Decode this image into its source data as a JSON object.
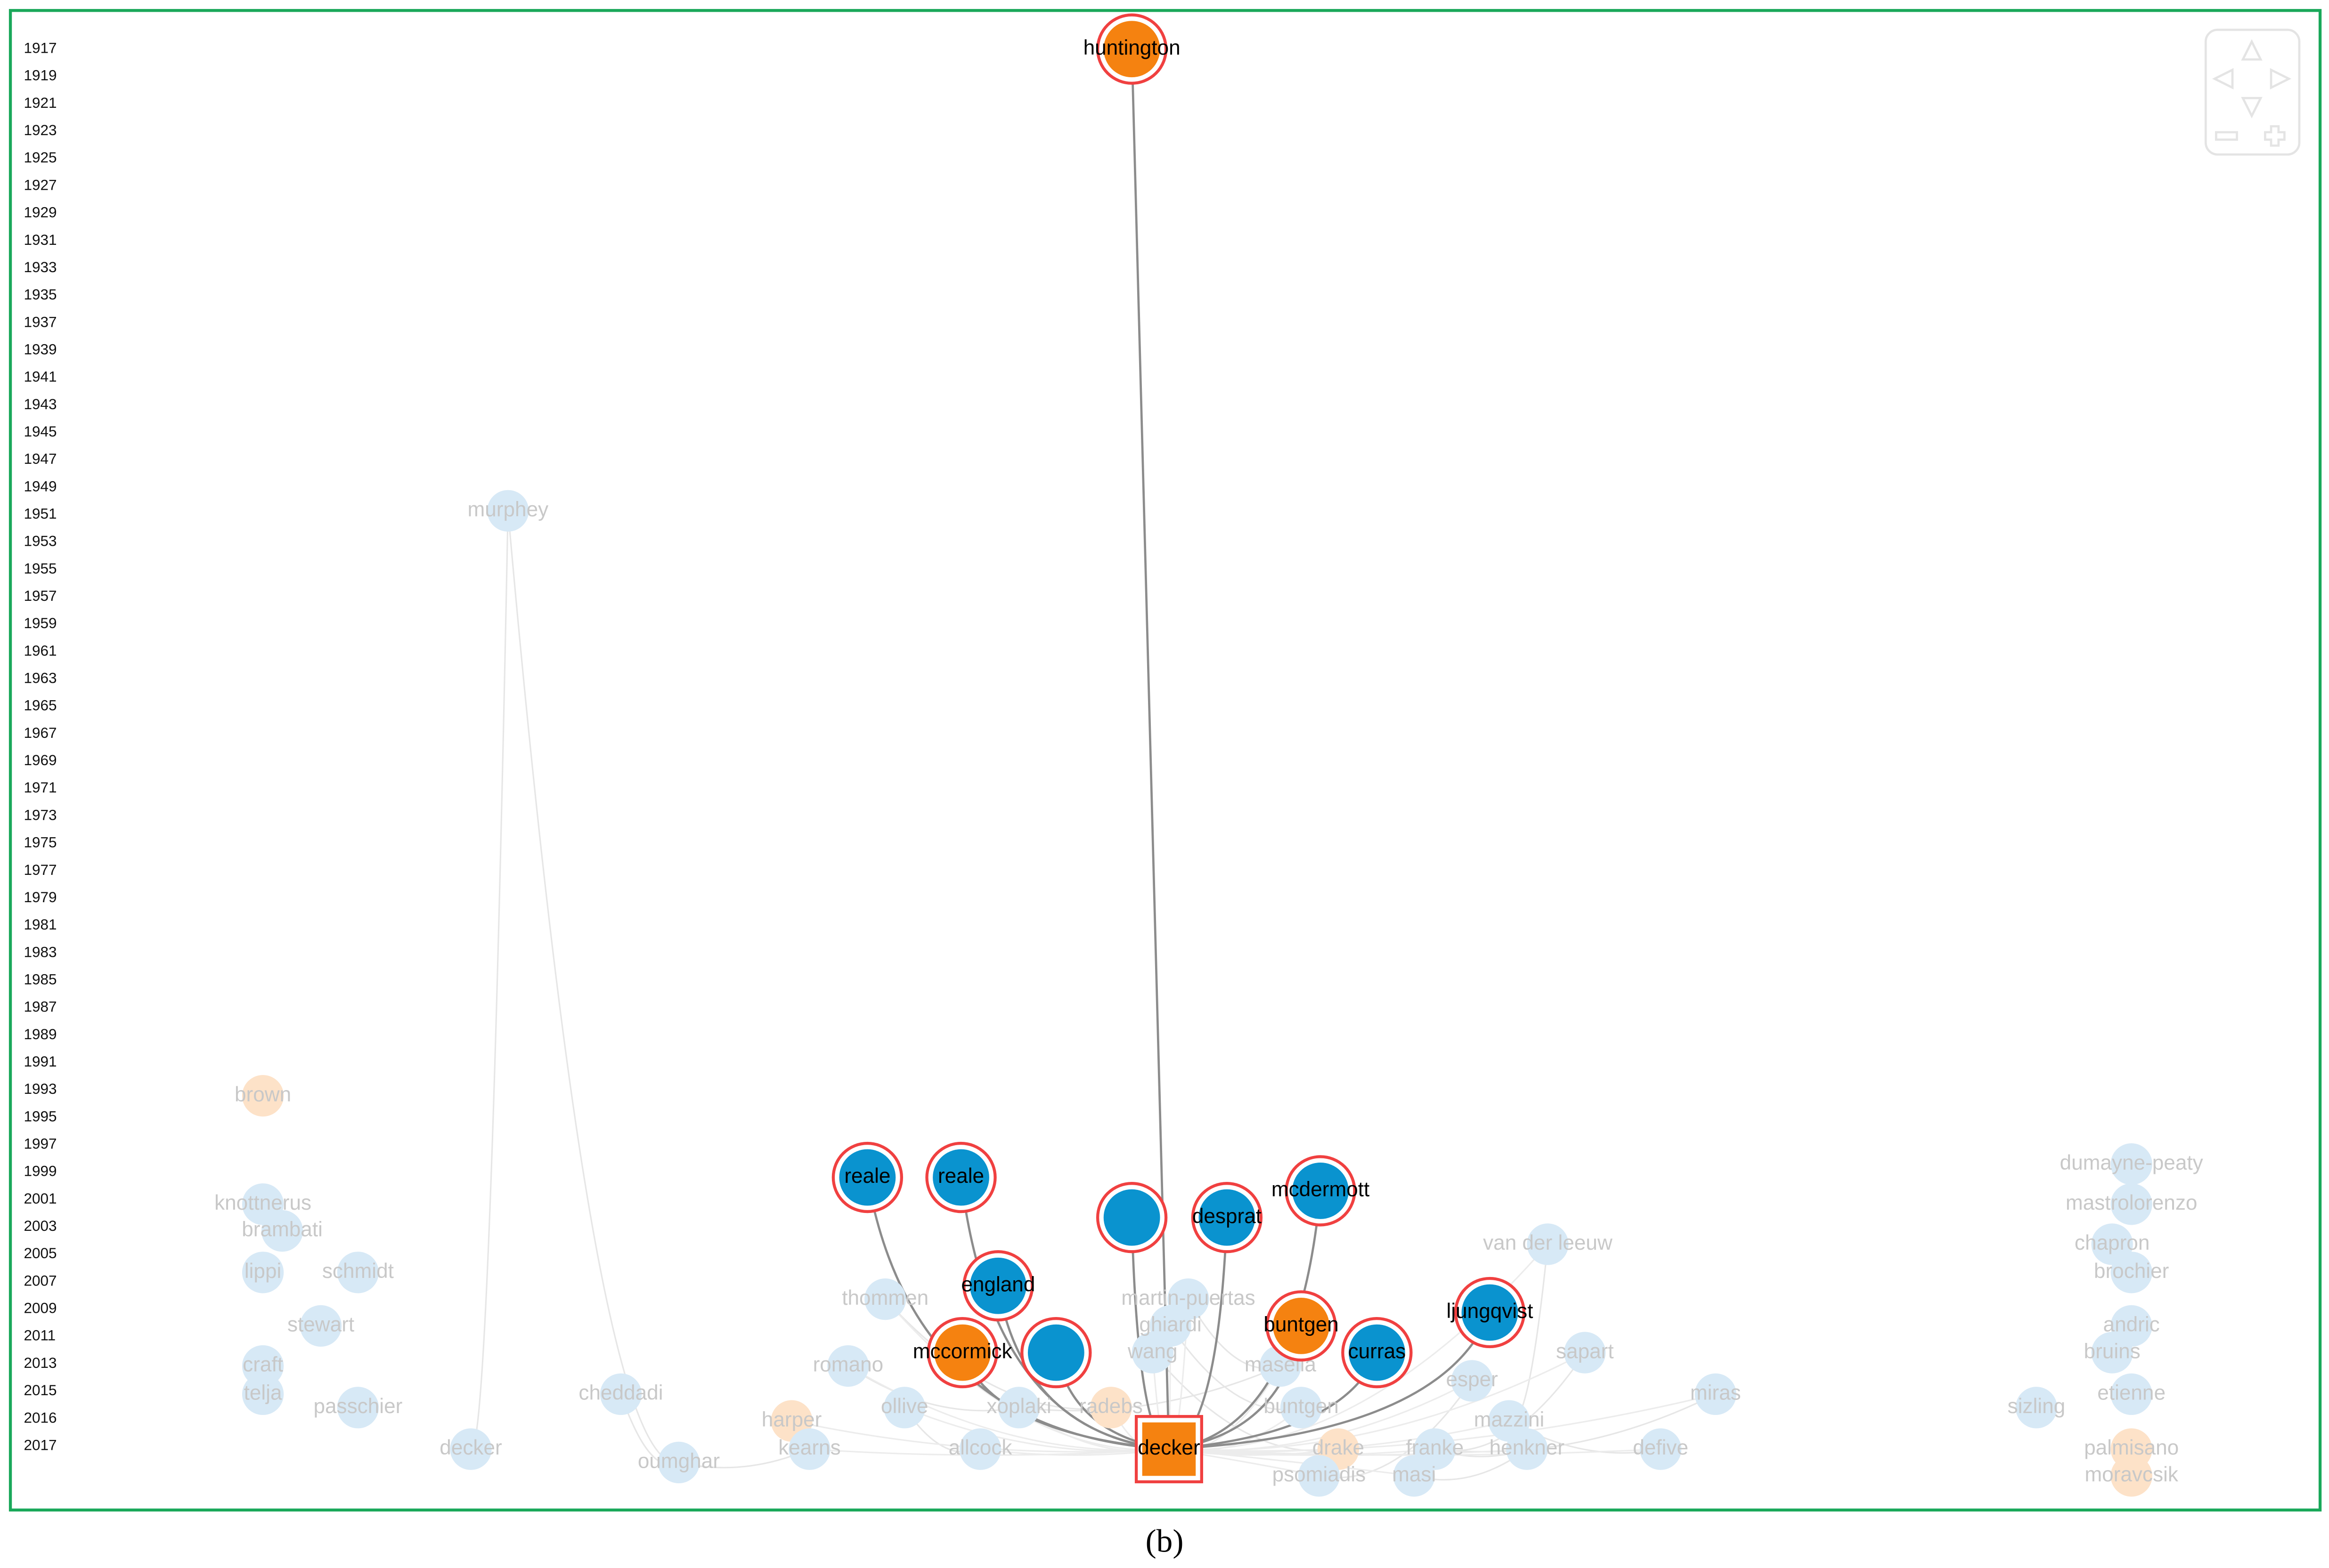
{
  "year_axis": [
    1917,
    1919,
    1921,
    1923,
    1925,
    1927,
    1929,
    1931,
    1933,
    1935,
    1937,
    1939,
    1941,
    1943,
    1945,
    1947,
    1949,
    1951,
    1953,
    1955,
    1957,
    1959,
    1961,
    1963,
    1965,
    1967,
    1969,
    1971,
    1973,
    1975,
    1977,
    1979,
    1981,
    1983,
    1985,
    1987,
    1989,
    1991,
    1993,
    1995,
    1997,
    1999,
    2001,
    2003,
    2005,
    2007,
    2009,
    2011,
    2013,
    2015,
    2016,
    2017
  ],
  "highlighted_nodes": [
    {
      "label": "huntington",
      "color": "#f58210"
    },
    {
      "label": "reale",
      "color": "#0a93cf"
    },
    {
      "label": "reale",
      "color": "#0a93cf"
    },
    {
      "color": "#0a93cf"
    },
    {
      "label": "desprat",
      "color": "#0a93cf"
    },
    {
      "label": "mcdermott",
      "color": "#0a93cf"
    },
    {
      "label": "england",
      "color": "#0a93cf"
    },
    {
      "label": "mccormick",
      "color": "#f58210"
    },
    {
      "color": "#0a93cf"
    },
    {
      "label": "buntgen",
      "color": "#f58210"
    },
    {
      "label": "curras",
      "color": "#0a93cf"
    },
    {
      "label": "ljungqvist",
      "color": "#0a93cf"
    }
  ],
  "focus_node": {
    "label": "decker",
    "color": "#f58210"
  },
  "faded_nodes": [
    {
      "label": "murphey",
      "color": "#d7e9f6"
    },
    {
      "label": "brown",
      "color": "#fde2c8"
    },
    {
      "label": "knottnerus",
      "color": "#d7e9f6"
    },
    {
      "label": "brambati",
      "color": "#d7e9f6"
    },
    {
      "label": "lippi",
      "color": "#d7e9f6"
    },
    {
      "label": "schmidt",
      "color": "#d7e9f6"
    },
    {
      "label": "stewart",
      "color": "#d7e9f6"
    },
    {
      "label": "craft",
      "color": "#d7e9f6"
    },
    {
      "label": "telja",
      "color": "#d7e9f6"
    },
    {
      "label": "passchier",
      "color": "#d7e9f6"
    },
    {
      "label": "decker",
      "color": "#d7e9f6"
    },
    {
      "label": "cheddadi",
      "color": "#d7e9f6"
    },
    {
      "label": "oumghar",
      "color": "#d7e9f6"
    },
    {
      "label": "thommen",
      "color": "#d7e9f6"
    },
    {
      "label": "romano",
      "color": "#d7e9f6"
    },
    {
      "label": "harper",
      "color": "#fde2c8"
    },
    {
      "label": "kearns",
      "color": "#d7e9f6"
    },
    {
      "label": "ollive",
      "color": "#d7e9f6"
    },
    {
      "label": "allcock",
      "color": "#d7e9f6"
    },
    {
      "label": "xoplaki",
      "color": "#d7e9f6"
    },
    {
      "label": "radebs",
      "color": "#fde2c8"
    },
    {
      "label": "martin-puertas",
      "color": "#d7e9f6"
    },
    {
      "label": "ghiardi",
      "color": "#d7e9f6"
    },
    {
      "label": "wang",
      "color": "#d7e9f6"
    },
    {
      "label": "masella",
      "color": "#d7e9f6"
    },
    {
      "label": "buntgen",
      "color": "#d7e9f6"
    },
    {
      "label": "drake",
      "color": "#fde2c8"
    },
    {
      "label": "franke",
      "color": "#d7e9f6"
    },
    {
      "label": "masi",
      "color": "#d7e9f6"
    },
    {
      "label": "psomiadis",
      "color": "#d7e9f6"
    },
    {
      "label": "mazzini",
      "color": "#d7e9f6"
    },
    {
      "label": "henkner",
      "color": "#d7e9f6"
    },
    {
      "label": "esper",
      "color": "#d7e9f6"
    },
    {
      "label": "van der leeuw",
      "color": "#d7e9f6"
    },
    {
      "label": "sapart",
      "color": "#d7e9f6"
    },
    {
      "label": "miras",
      "color": "#d7e9f6"
    },
    {
      "label": "defive",
      "color": "#d7e9f6"
    },
    {
      "label": "sizling",
      "color": "#d7e9f6"
    },
    {
      "label": "dumayne-peaty",
      "color": "#d7e9f6"
    },
    {
      "label": "mastrolorenzo",
      "color": "#d7e9f6"
    },
    {
      "label": "chapron",
      "color": "#d7e9f6"
    },
    {
      "label": "brochier",
      "color": "#d7e9f6"
    },
    {
      "label": "andric",
      "color": "#d7e9f6"
    },
    {
      "label": "bruins",
      "color": "#d7e9f6"
    },
    {
      "label": "etienne",
      "color": "#d7e9f6"
    },
    {
      "label": "palmisano",
      "color": "#fde2c8"
    },
    {
      "label": "moravcsik",
      "color": "#fde2c8"
    }
  ],
  "caption": "(b)"
}
